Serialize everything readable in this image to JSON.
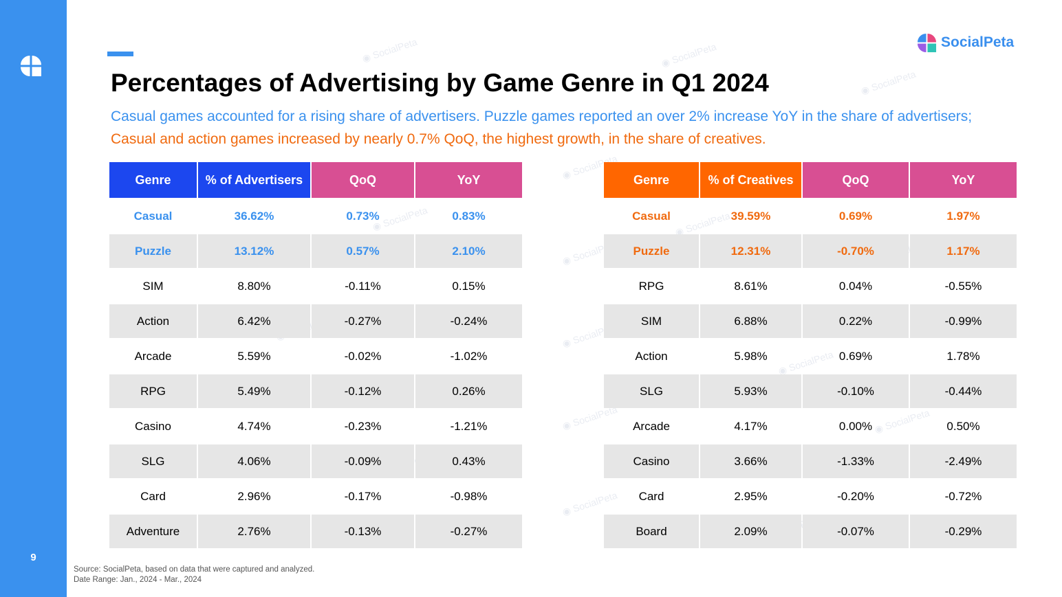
{
  "page_number": "9",
  "brand": {
    "name": "SocialPeta"
  },
  "title": "Percentages of Advertising by Game Genre in Q1 2024",
  "subtitle": {
    "part_blue": "Casual games accounted for a rising share of advertisers. Puzzle games reported an over 2% increase YoY in the share of advertisers;",
    "part_orange": "Casual and action games increased by nearly 0.7% QoQ, the highest growth, in the share of creatives."
  },
  "advertisers_table": {
    "headers": [
      "Genre",
      "% of Advertisers",
      "QoQ",
      "YoY"
    ],
    "rows": [
      [
        "Casual",
        "36.62%",
        "0.73%",
        "0.83%"
      ],
      [
        "Puzzle",
        "13.12%",
        "0.57%",
        "2.10%"
      ],
      [
        "SIM",
        "8.80%",
        "-0.11%",
        "0.15%"
      ],
      [
        "Action",
        "6.42%",
        "-0.27%",
        "-0.24%"
      ],
      [
        "Arcade",
        "5.59%",
        "-0.02%",
        "-1.02%"
      ],
      [
        "RPG",
        "5.49%",
        "-0.12%",
        "0.26%"
      ],
      [
        "Casino",
        "4.74%",
        "-0.23%",
        "-1.21%"
      ],
      [
        "SLG",
        "4.06%",
        "-0.09%",
        "0.43%"
      ],
      [
        "Card",
        "2.96%",
        "-0.17%",
        "-0.98%"
      ],
      [
        "Adventure",
        "2.76%",
        "-0.13%",
        "-0.27%"
      ]
    ]
  },
  "creatives_table": {
    "headers": [
      "Genre",
      "% of Creatives",
      "QoQ",
      "YoY"
    ],
    "rows": [
      [
        "Casual",
        "39.59%",
        "0.69%",
        "1.97%"
      ],
      [
        "Puzzle",
        "12.31%",
        "-0.70%",
        "1.17%"
      ],
      [
        "RPG",
        "8.61%",
        "0.04%",
        "-0.55%"
      ],
      [
        "SIM",
        "6.88%",
        "0.22%",
        "-0.99%"
      ],
      [
        "Action",
        "5.98%",
        "0.69%",
        "1.78%"
      ],
      [
        "SLG",
        "5.93%",
        "-0.10%",
        "-0.44%"
      ],
      [
        "Arcade",
        "4.17%",
        "0.00%",
        "0.50%"
      ],
      [
        "Casino",
        "3.66%",
        "-1.33%",
        "-2.49%"
      ],
      [
        "Card",
        "2.95%",
        "-0.20%",
        "-0.72%"
      ],
      [
        "Board",
        "2.09%",
        "-0.07%",
        "-0.29%"
      ]
    ]
  },
  "source": {
    "line1": "Source: SocialPeta, based on data that were captured and analyzed.",
    "line2": "Date Range: Jan., 2024 - Mar., 2024"
  },
  "colors": {
    "accent_blue": "#3a91ee",
    "header_blue": "#1c47ef",
    "header_orange": "#ff6600",
    "header_pink": "#d84f93",
    "highlight_orange": "#f06a0f"
  }
}
